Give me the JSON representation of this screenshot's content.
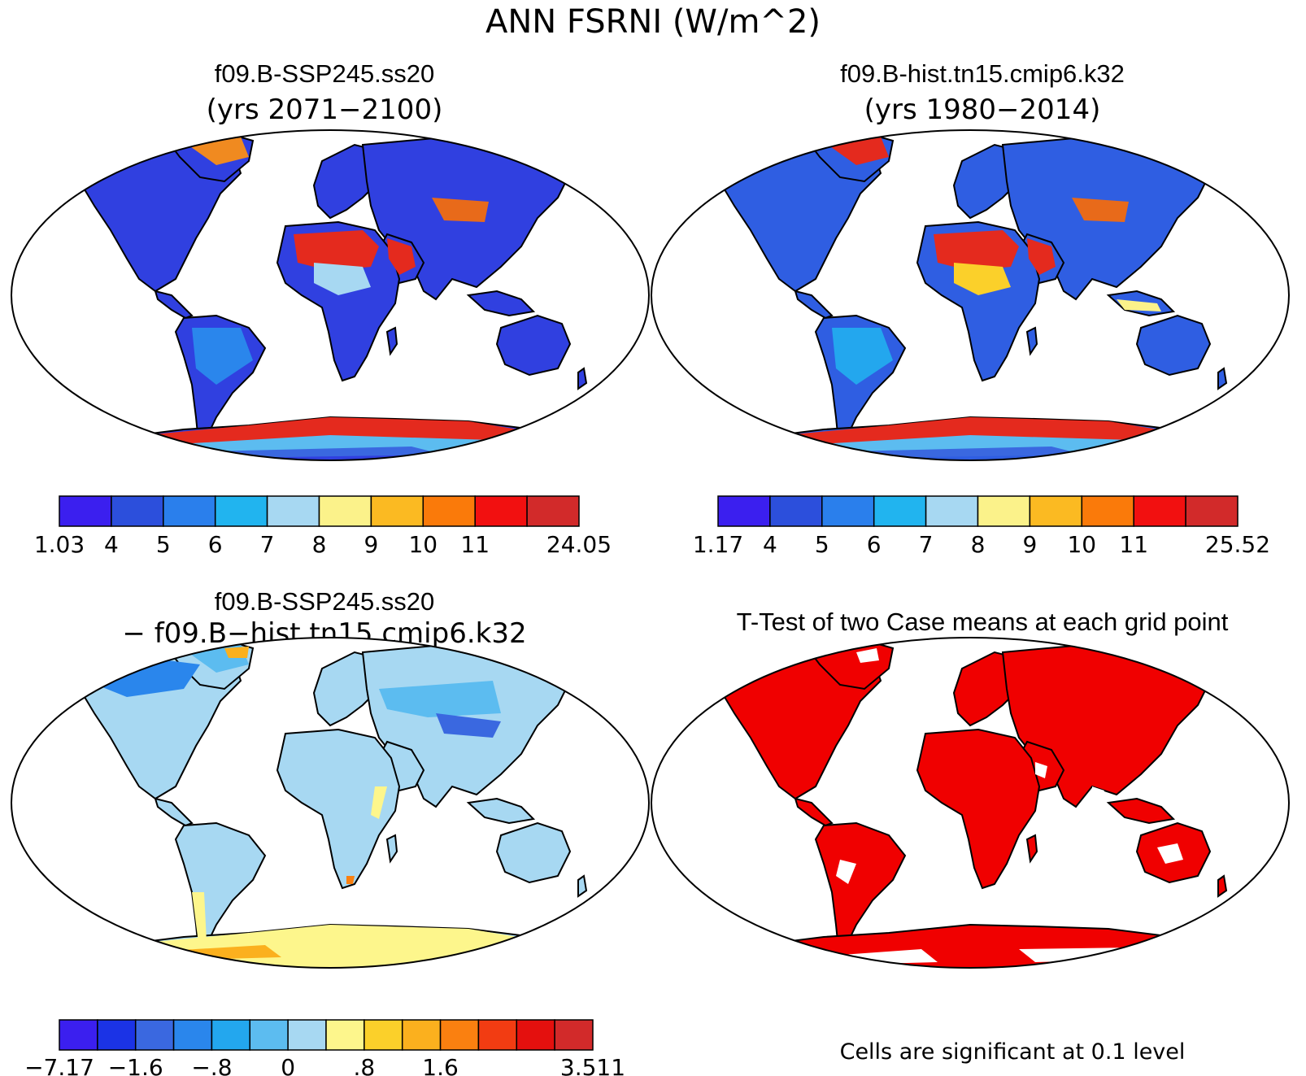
{
  "figure": {
    "title": "ANN FSRNI (W/m^2)"
  },
  "panels": {
    "case1": {
      "title": "f09.B-SSP245.ss20",
      "subtitle": "(yrs 2071−2100)",
      "colorbar": {
        "colors": [
          "#3b1fef",
          "#2c4fdc",
          "#2a7fec",
          "#21b4ef",
          "#a7d8f2",
          "#fbf28a",
          "#fbba22",
          "#fa7a0a",
          "#f21010",
          "#d22a2a"
        ],
        "labels": [
          "1.03",
          "4",
          "5",
          "6",
          "7",
          "8",
          "9",
          "10",
          "11",
          "24.05"
        ]
      }
    },
    "case2": {
      "title": "f09.B-hist.tn15.cmip6.k32",
      "subtitle": "(yrs 1980−2014)",
      "colorbar": {
        "colors": [
          "#3b1fef",
          "#2c4fdc",
          "#2a7fec",
          "#21b4ef",
          "#a7d8f2",
          "#fbf28a",
          "#fbba22",
          "#fa7a0a",
          "#f21010",
          "#d22a2a"
        ],
        "labels": [
          "1.17",
          "4",
          "5",
          "6",
          "7",
          "8",
          "9",
          "10",
          "11",
          "25.52"
        ]
      }
    },
    "diff": {
      "title": "f09.B-SSP245.ss20",
      "subtitle": "− f09.B−hist.tn15.cmip6.k32",
      "colorbar": {
        "colors": [
          "#3b1fef",
          "#1b33e6",
          "#3a68e0",
          "#2a86ec",
          "#23a7ee",
          "#5cbcf0",
          "#a7d8f2",
          "#fdf68c",
          "#fbd02a",
          "#fbb01e",
          "#fa8010",
          "#f23c12",
          "#e4100e",
          "#d22a2a"
        ],
        "labels": [
          "−7.17",
          "−1.6",
          "−.8",
          "0",
          ".8",
          "1.6",
          "3.511"
        ]
      }
    },
    "ttest": {
      "title": "T-Test of two Case means at each grid point",
      "note": "Cells are significant at 0.1 level",
      "color": "#f00000"
    }
  }
}
